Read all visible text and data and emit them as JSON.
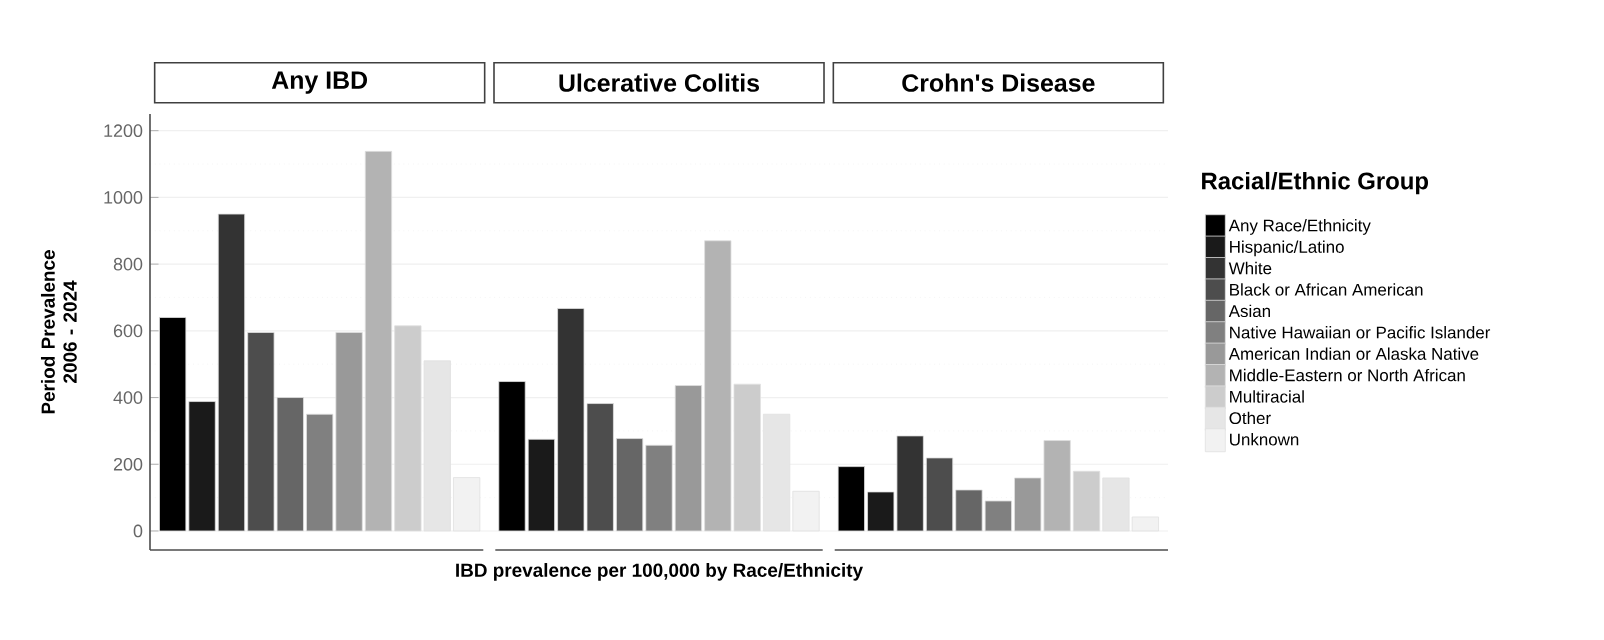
{
  "chart_data": {
    "type": "bar",
    "xlabel": "IBD prevalence per 100,000 by Race/Ethnicity",
    "ylabel": "Period Prevalence 2006 - 2024",
    "categories": [
      "Any IBD",
      "Ulcerative Colitis",
      "Crohn's Disease"
    ],
    "ylim": [
      -57,
      1250
    ],
    "yticks": [
      0,
      200,
      400,
      600,
      800,
      1000,
      1200
    ],
    "grid": "y",
    "legend": "right",
    "legend_title": "Racial/Ethnic Group",
    "series": [
      {
        "name": "Any Race/Ethnicity",
        "color": "#000000",
        "values": [
          640,
          448,
          193
        ]
      },
      {
        "name": "Hispanic/Latino",
        "color": "#1a1a1a",
        "values": [
          388,
          275,
          117
        ]
      },
      {
        "name": "White",
        "color": "#333333",
        "values": [
          950,
          667,
          285
        ]
      },
      {
        "name": "Black or African American",
        "color": "#4d4d4d",
        "values": [
          595,
          382,
          219
        ]
      },
      {
        "name": "Asian",
        "color": "#666666",
        "values": [
          400,
          277,
          123
        ]
      },
      {
        "name": "Native Hawaiian or Pacific Islander",
        "color": "#808080",
        "values": [
          350,
          257,
          90
        ]
      },
      {
        "name": "American Indian or Alaska Native",
        "color": "#999999",
        "values": [
          595,
          436,
          159
        ]
      },
      {
        "name": "Middle-Eastern or North African",
        "color": "#b3b3b3",
        "values": [
          1138,
          870,
          271
        ]
      },
      {
        "name": "Multiracial",
        "color": "#cccccc",
        "values": [
          615,
          440,
          179
        ]
      },
      {
        "name": "Other",
        "color": "#e6e6e6",
        "values": [
          510,
          350,
          159
        ]
      },
      {
        "name": "Unknown",
        "color": "#f2f2f2",
        "values": [
          160,
          119,
          42
        ]
      }
    ]
  }
}
